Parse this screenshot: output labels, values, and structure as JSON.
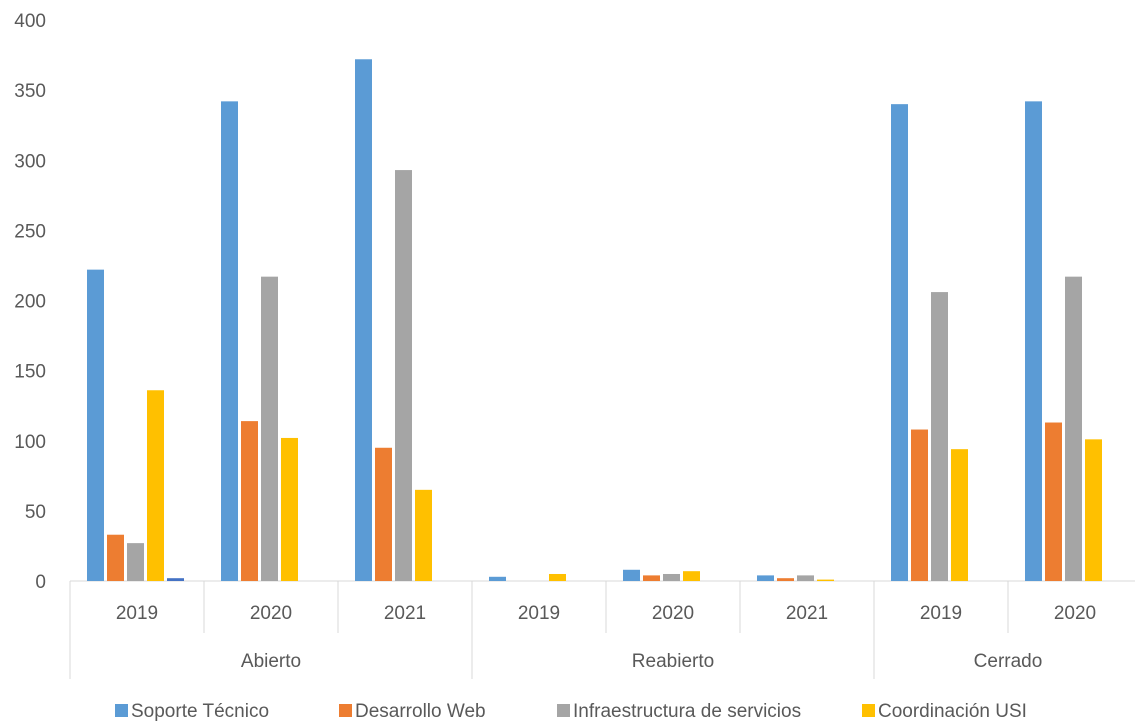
{
  "chart_data": {
    "type": "bar",
    "title": "",
    "xlabel": "",
    "ylabel": "",
    "ylim": [
      0,
      400
    ],
    "yticks": [
      "0",
      "50",
      "100",
      "150",
      "200",
      "250",
      "300",
      "350",
      "400"
    ],
    "grid": false,
    "legend_position": "bottom",
    "groups": [
      {
        "label": "Abierto",
        "categories": [
          "2019",
          "2020",
          "2021"
        ]
      },
      {
        "label": "Reabierto",
        "categories": [
          "2019",
          "2020",
          "2021"
        ]
      },
      {
        "label": "Cerrado",
        "categories": [
          "2019",
          "2020"
        ]
      }
    ],
    "categories": [
      "Abierto 2019",
      "Abierto 2020",
      "Abierto 2021",
      "Reabierto 2019",
      "Reabierto 2020",
      "Reabierto 2021",
      "Cerrado 2019",
      "Cerrado 2020"
    ],
    "series": [
      {
        "name": "Soporte Técnico",
        "color": "#5B9BD5",
        "values": [
          222,
          342,
          372,
          3,
          8,
          4,
          340,
          342
        ]
      },
      {
        "name": "Desarrollo Web",
        "color": "#ED7D31",
        "values": [
          33,
          114,
          95,
          0,
          4,
          2,
          108,
          113
        ]
      },
      {
        "name": "Infraestructura de servicios",
        "color": "#A5A5A5",
        "values": [
          27,
          217,
          293,
          0,
          5,
          4,
          206,
          217
        ]
      },
      {
        "name": "Coordinación USI",
        "color": "#FFC000",
        "values": [
          136,
          102,
          65,
          5,
          7,
          1,
          94,
          101
        ]
      }
    ],
    "extra_bars": [
      {
        "category_index": 0,
        "slot": 4,
        "value": 2,
        "color": "#4472C4"
      }
    ]
  }
}
